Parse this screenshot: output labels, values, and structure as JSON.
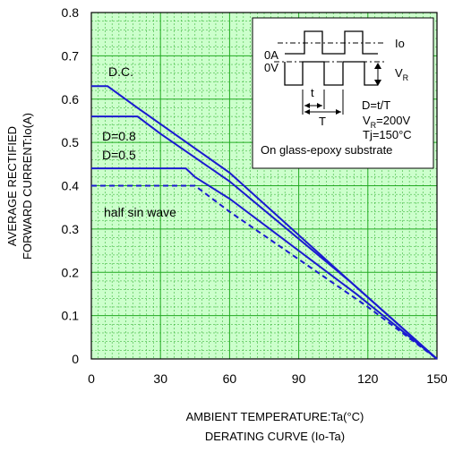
{
  "chart_data": {
    "type": "line",
    "xlabel": "AMBIENT TEMPERATURE:Ta(°C)",
    "caption": "DERATING  CURVE (Io-Ta)",
    "ylabel_lines": [
      "AVERAGE RECTIFIED",
      "FORWARD CURRENT:Io(A)"
    ],
    "xlim": [
      0,
      150
    ],
    "ylim": [
      0,
      0.8
    ],
    "x_ticks": [
      "0",
      "30",
      "60",
      "90",
      "120",
      "150"
    ],
    "y_ticks": [
      "0",
      "0.1",
      "0.2",
      "0.3",
      "0.4",
      "0.5",
      "0.6",
      "0.7",
      "0.8"
    ],
    "grid": true,
    "colors": {
      "background": "#ccffcc",
      "grid": "#22aa22",
      "curve": "#1a1ad0"
    },
    "series": [
      {
        "name": "D.C.",
        "style": "solid",
        "x": [
          0,
          7,
          20,
          60,
          110,
          150
        ],
        "y": [
          0.63,
          0.63,
          0.58,
          0.43,
          0.19,
          0.0
        ]
      },
      {
        "name": "D=0.8",
        "style": "solid",
        "x": [
          0,
          20,
          30,
          60,
          112,
          150
        ],
        "y": [
          0.56,
          0.56,
          0.52,
          0.41,
          0.18,
          0.0
        ]
      },
      {
        "name": "D=0.5",
        "style": "solid",
        "x": [
          0,
          41,
          45,
          60,
          115,
          150
        ],
        "y": [
          0.44,
          0.44,
          0.42,
          0.37,
          0.15,
          0.0
        ]
      },
      {
        "name": "half sin wave",
        "style": "dashed",
        "x": [
          0,
          45,
          50,
          60,
          120,
          150
        ],
        "y": [
          0.4,
          0.4,
          0.38,
          0.34,
          0.12,
          0.0
        ]
      }
    ],
    "inset": {
      "io_label": "Io",
      "zero_a": "0A",
      "zero_v": "0V",
      "vr_label": "V",
      "vr_sub": "R",
      "t_small": "t",
      "t_big": "T",
      "duty": "D=t/T",
      "vr_value_prefix": "V",
      "vr_value_sub": "R",
      "vr_value_suffix": "=200V",
      "tj": "Tj=150°C",
      "substrate": "On glass-epoxy substrate"
    }
  }
}
